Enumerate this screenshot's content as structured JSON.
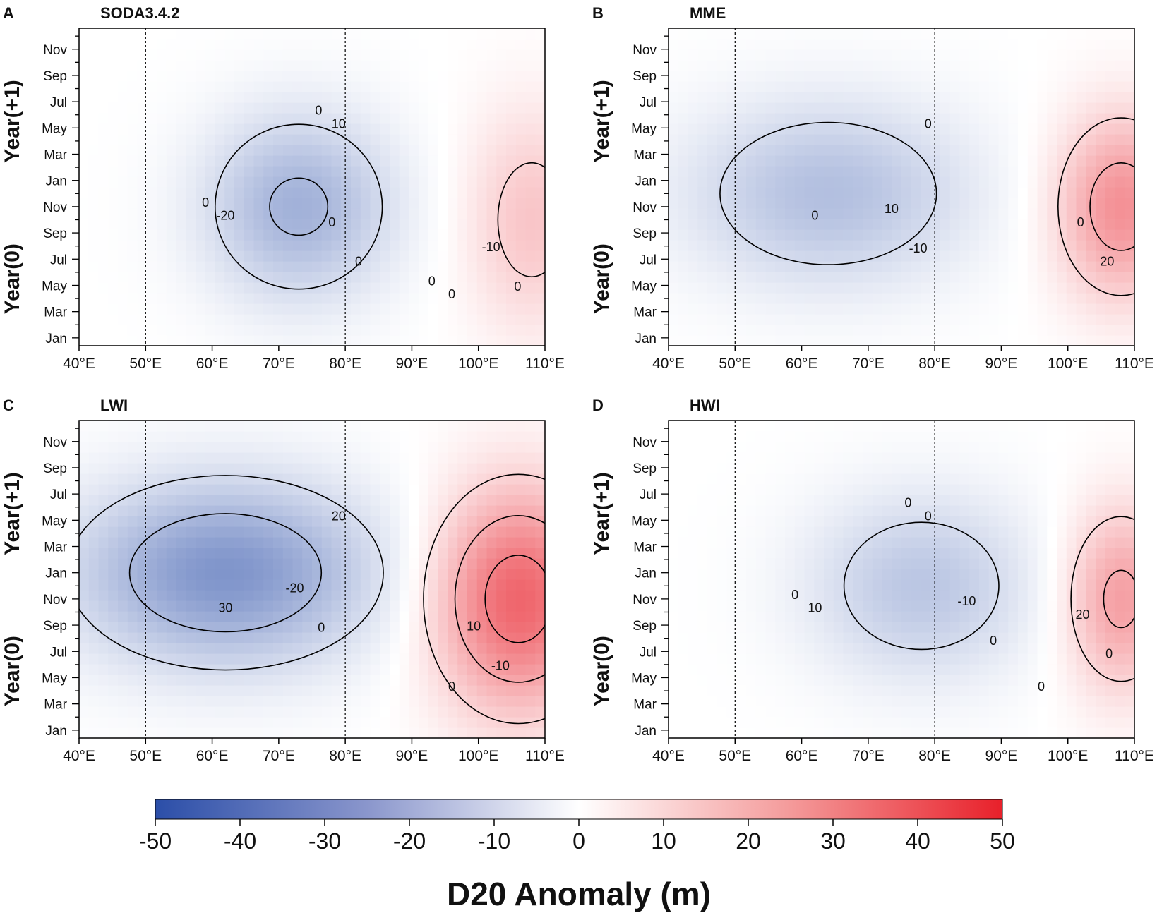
{
  "figure": {
    "colorbar": {
      "label": "D20 Anomaly (m)",
      "range": [
        -50,
        50
      ],
      "ticks": [
        "-50",
        "-40",
        "-30",
        "-20",
        "-10",
        "0",
        "10",
        "20",
        "30",
        "40",
        "50"
      ],
      "colors": {
        "negative": "#2b4ea8",
        "zero": "#ffffff",
        "positive": "#e8202a"
      }
    },
    "dashed_reference_lines": [
      "50°E",
      "80°E"
    ]
  },
  "chart_data": [
    {
      "panel": "A",
      "title": "SODA3.4.2",
      "type": "heatmap",
      "xlabel": "",
      "x_range": [
        40,
        110
      ],
      "x_ticks": [
        "40°E",
        "50°E",
        "60°E",
        "70°E",
        "80°E",
        "90°E",
        "100°E",
        "110°E"
      ],
      "y_groups": [
        "Year(0)",
        "Year(+1)"
      ],
      "y_ticks": [
        "Jan",
        "Mar",
        "May",
        "Jul",
        "Sep",
        "Nov",
        "Jan",
        "Mar",
        "May",
        "Jul",
        "Sep",
        "Nov"
      ],
      "contour_labels": [
        "0",
        "0",
        "0",
        "-10",
        "-20",
        "10",
        "0",
        "0",
        "0",
        "0"
      ],
      "features": {
        "negative": [
          {
            "lon": 73,
            "month": 11,
            "value": -22,
            "lon_sd": 10,
            "mo_sd": 5
          }
        ],
        "positive": [
          {
            "lon": 108,
            "month": 10,
            "value": 13,
            "lon_sd": 7,
            "mo_sd": 6
          }
        ]
      }
    },
    {
      "panel": "B",
      "title": "MME",
      "type": "heatmap",
      "x_range": [
        40,
        110
      ],
      "x_ticks": [
        "40°E",
        "50°E",
        "60°E",
        "70°E",
        "80°E",
        "90°E",
        "100°E",
        "110°E"
      ],
      "y_groups": [
        "Year(0)",
        "Year(+1)"
      ],
      "y_ticks": [
        "Jan",
        "Mar",
        "May",
        "Jul",
        "Sep",
        "Nov",
        "Jan",
        "Mar",
        "May",
        "Jul",
        "Sep",
        "Nov"
      ],
      "contour_labels": [
        "-10",
        "20",
        "10",
        "0",
        "0",
        "0"
      ],
      "features": {
        "negative": [
          {
            "lon": 64,
            "month": 12,
            "value": -18,
            "lon_sd": 15,
            "mo_sd": 5
          }
        ],
        "positive": [
          {
            "lon": 108,
            "month": 11,
            "value": 25,
            "lon_sd": 7,
            "mo_sd": 5
          }
        ]
      }
    },
    {
      "panel": "C",
      "title": "LWI",
      "type": "heatmap",
      "x_range": [
        40,
        110
      ],
      "x_ticks": [
        "40°E",
        "50°E",
        "60°E",
        "70°E",
        "80°E",
        "90°E",
        "100°E",
        "110°E"
      ],
      "y_groups": [
        "Year(0)",
        "Year(+1)"
      ],
      "y_ticks": [
        "Jan",
        "Mar",
        "May",
        "Jul",
        "Sep",
        "Nov",
        "Jan",
        "Mar",
        "May",
        "Jul",
        "Sep",
        "Nov"
      ],
      "contour_labels": [
        "0",
        "-10",
        "-20",
        "10",
        "30",
        "20",
        "0"
      ],
      "features": {
        "negative": [
          {
            "lon": 62,
            "month": 13,
            "value": -30,
            "lon_sd": 16,
            "mo_sd": 5
          }
        ],
        "positive": [
          {
            "lon": 106,
            "month": 11,
            "value": 35,
            "lon_sd": 9,
            "mo_sd": 6
          }
        ]
      }
    },
    {
      "panel": "D",
      "title": "HWI",
      "type": "heatmap",
      "x_range": [
        40,
        110
      ],
      "x_ticks": [
        "40°E",
        "50°E",
        "60°E",
        "70°E",
        "80°E",
        "90°E",
        "100°E",
        "110°E"
      ],
      "y_groups": [
        "Year(0)",
        "Year(+1)"
      ],
      "y_ticks": [
        "Jan",
        "Mar",
        "May",
        "Jul",
        "Sep",
        "Nov",
        "Jan",
        "Mar",
        "May",
        "Jul",
        "Sep",
        "Nov"
      ],
      "contour_labels": [
        "0",
        "0",
        "-10",
        "20",
        "10",
        "0",
        "0",
        "0",
        "0"
      ],
      "features": {
        "negative": [
          {
            "lon": 78,
            "month": 12,
            "value": -16,
            "lon_sd": 12,
            "mo_sd": 5
          }
        ],
        "positive": [
          {
            "lon": 108,
            "month": 11,
            "value": 22,
            "lon_sd": 6,
            "mo_sd": 5
          }
        ]
      }
    }
  ]
}
